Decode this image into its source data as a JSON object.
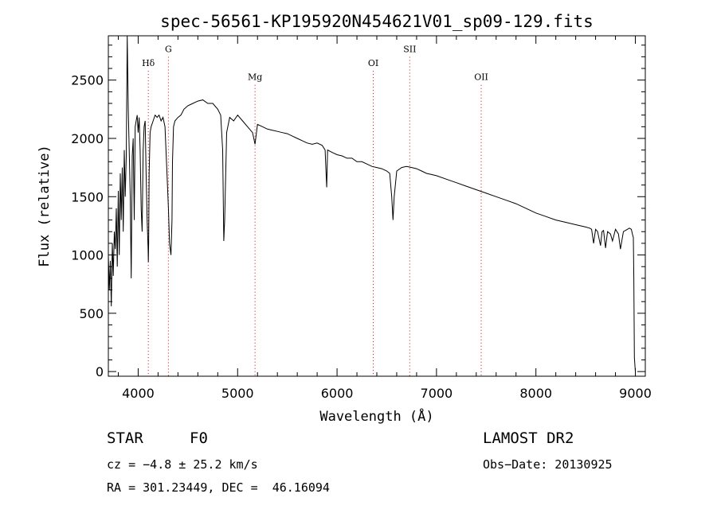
{
  "chart_data": {
    "type": "line",
    "title": "spec-56561-KP195920N454621V01_sp09-129.fits",
    "xlabel": "Wavelength (Å)",
    "ylabel": "Flux (relative)",
    "xlim": [
      3700,
      9100
    ],
    "ylim": [
      -40,
      2880
    ],
    "xticks": [
      4000,
      5000,
      6000,
      7000,
      8000,
      9000
    ],
    "yticks": [
      0,
      500,
      1000,
      1500,
      2000,
      2500
    ],
    "grid": false,
    "line_color": "#000000",
    "marker_color": "#cc0000",
    "line_markers": [
      {
        "label": "Hδ",
        "x": 4102,
        "label_y": 2620
      },
      {
        "label": "G",
        "x": 4304,
        "label_y": 2740
      },
      {
        "label": "Mg",
        "x": 5175,
        "label_y": 2500
      },
      {
        "label": "OI",
        "x": 6364,
        "label_y": 2620
      },
      {
        "label": "SII",
        "x": 6731,
        "label_y": 2740
      },
      {
        "label": "OII",
        "x": 7450,
        "label_y": 2500
      }
    ],
    "series": [
      {
        "x": [
          3700,
          3710,
          3720,
          3730,
          3740,
          3750,
          3760,
          3770,
          3780,
          3790,
          3800,
          3810,
          3820,
          3830,
          3840,
          3850,
          3860,
          3870,
          3880,
          3890,
          3900,
          3910,
          3920,
          3930,
          3940,
          3950,
          3960,
          3970,
          3980,
          3990,
          4000,
          4010,
          4020,
          4030,
          4040,
          4050,
          4060,
          4070,
          4080,
          4090,
          4100,
          4102,
          4105,
          4110,
          4120,
          4130,
          4150,
          4170,
          4190,
          4210,
          4230,
          4250,
          4270,
          4290,
          4304,
          4315,
          4330,
          4340,
          4345,
          4355,
          4370,
          4400,
          4430,
          4460,
          4500,
          4550,
          4600,
          4650,
          4700,
          4750,
          4800,
          4830,
          4850,
          4861,
          4870,
          4890,
          4920,
          4960,
          5000,
          5050,
          5100,
          5150,
          5175,
          5200,
          5250,
          5300,
          5350,
          5400,
          5450,
          5500,
          5550,
          5600,
          5650,
          5700,
          5750,
          5800,
          5850,
          5880,
          5890,
          5896,
          5905,
          5950,
          6000,
          6050,
          6100,
          6150,
          6200,
          6250,
          6300,
          6350,
          6400,
          6450,
          6500,
          6530,
          6550,
          6563,
          6575,
          6600,
          6650,
          6700,
          6750,
          6800,
          6850,
          6900,
          6950,
          7000,
          7100,
          7200,
          7300,
          7400,
          7500,
          7600,
          7700,
          7800,
          7900,
          8000,
          8100,
          8200,
          8300,
          8400,
          8500,
          8540,
          8560,
          8580,
          8600,
          8620,
          8650,
          8665,
          8680,
          8700,
          8720,
          8750,
          8770,
          8800,
          8830,
          8850,
          8880,
          8900,
          8940,
          8960,
          8970,
          8980,
          8985,
          8990,
          9000
        ],
        "y": [
          1000,
          700,
          950,
          560,
          1100,
          820,
          1200,
          1050,
          1400,
          900,
          1550,
          1000,
          1700,
          1300,
          1750,
          1200,
          1900,
          1500,
          1850,
          2880,
          2250,
          1900,
          1500,
          800,
          1850,
          2000,
          1300,
          2100,
          2150,
          2200,
          2050,
          2180,
          1900,
          1400,
          1200,
          1900,
          2100,
          2150,
          1700,
          1300,
          1050,
          940,
          1100,
          1700,
          2050,
          2100,
          2150,
          2200,
          2180,
          2200,
          2150,
          2180,
          2100,
          1700,
          1400,
          1100,
          1000,
          1300,
          1800,
          2100,
          2150,
          2180,
          2200,
          2250,
          2280,
          2300,
          2320,
          2330,
          2300,
          2300,
          2250,
          2200,
          1900,
          1120,
          1300,
          2050,
          2180,
          2150,
          2200,
          2150,
          2100,
          2050,
          1950,
          2120,
          2100,
          2080,
          2070,
          2060,
          2050,
          2040,
          2020,
          2000,
          1980,
          1960,
          1950,
          1960,
          1940,
          1900,
          1700,
          1580,
          1900,
          1880,
          1860,
          1850,
          1830,
          1830,
          1800,
          1800,
          1780,
          1760,
          1750,
          1740,
          1720,
          1700,
          1500,
          1300,
          1500,
          1720,
          1750,
          1760,
          1750,
          1740,
          1720,
          1700,
          1690,
          1680,
          1650,
          1620,
          1590,
          1560,
          1530,
          1500,
          1470,
          1440,
          1400,
          1360,
          1330,
          1300,
          1280,
          1260,
          1240,
          1230,
          1220,
          1100,
          1220,
          1200,
          1080,
          1200,
          1210,
          1060,
          1200,
          1180,
          1120,
          1220,
          1180,
          1050,
          1200,
          1210,
          1230,
          1220,
          1180,
          1150,
          800,
          120,
          0
        ]
      }
    ]
  },
  "info": {
    "object_class": "STAR",
    "subclass": "F0",
    "survey": "LAMOST DR2",
    "cz": "cz = −4.8 ± 25.2 km/s",
    "obs_date": "Obs−Date: 20130925",
    "coords": "RA = 301.23449, DEC =  46.16094"
  }
}
